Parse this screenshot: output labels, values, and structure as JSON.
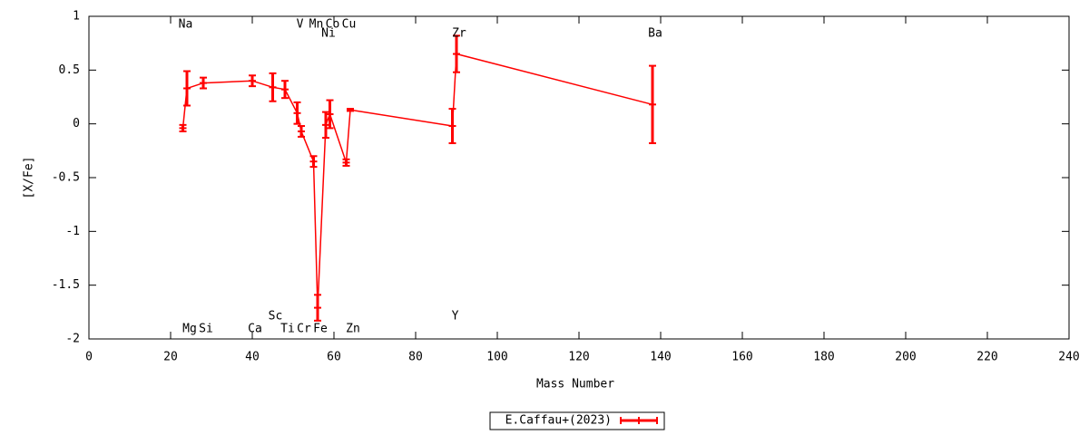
{
  "chart_data": {
    "type": "errorbar-line",
    "xlabel": "Mass Number",
    "ylabel": "[X/Fe]",
    "xlim": [
      0,
      240
    ],
    "xticks": [
      0,
      20,
      40,
      60,
      80,
      100,
      120,
      140,
      160,
      180,
      200,
      220,
      240
    ],
    "ylim": [
      -2,
      1
    ],
    "yticks": [
      1,
      0.5,
      0,
      -0.5,
      -1,
      -1.5,
      -2
    ],
    "series": [
      {
        "name": "E.Caffau+(2023)",
        "color": "#ff0000",
        "x": [
          23,
          24,
          28,
          40,
          45,
          48,
          51,
          52,
          55,
          56,
          58,
          59,
          63,
          64,
          89,
          90,
          138
        ],
        "labels": [
          "Na",
          "Mg",
          "Si",
          "Ca",
          "Sc",
          "Ti",
          "V",
          "Cr",
          "Mn",
          "Fe",
          "Ni",
          "Co",
          "Cu",
          "Zn",
          "Y",
          "Zr",
          "Ba"
        ],
        "values": [
          -0.04,
          0.33,
          0.38,
          0.4,
          0.34,
          0.32,
          0.1,
          -0.07,
          -0.35,
          -1.71,
          -0.01,
          0.09,
          -0.36,
          0.13,
          -0.02,
          0.65,
          0.18
        ],
        "errors": [
          0.03,
          0.16,
          0.05,
          0.05,
          0.13,
          0.08,
          0.1,
          0.05,
          0.05,
          0.12,
          0.12,
          0.13,
          0.03,
          0.01,
          0.16,
          0.17,
          0.36
        ]
      }
    ]
  }
}
